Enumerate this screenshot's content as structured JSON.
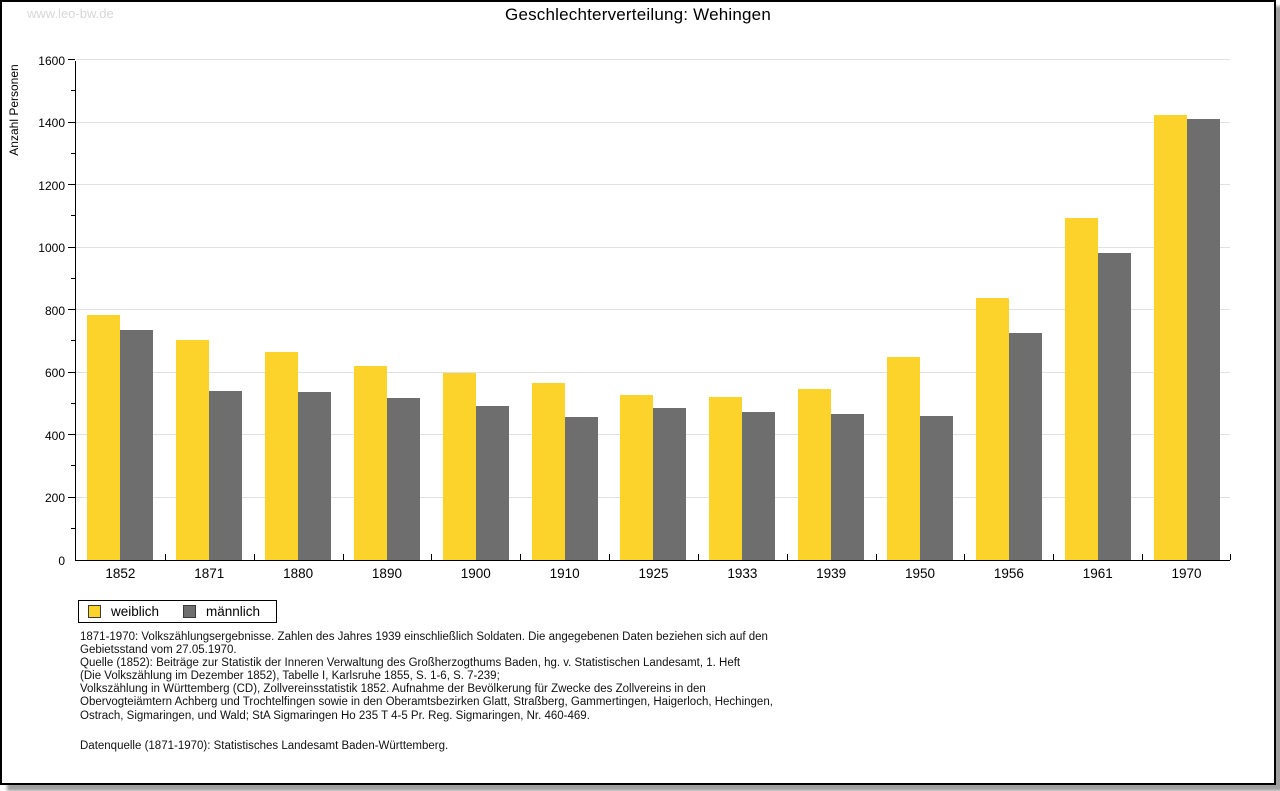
{
  "watermark": "www.leo-bw.de",
  "title": "Geschlechterverteilung: Wehingen",
  "colors": {
    "weiblich": "#fcd32a",
    "maennlich": "#6e6e6e",
    "gridline": "#e0e0e0",
    "axis": "#000000",
    "watermark": "#d7d7d7",
    "frame_border": "#000000"
  },
  "chart_data": {
    "type": "bar",
    "title": "Geschlechterverteilung: Wehingen",
    "xlabel": "",
    "ylabel": "Anzahl Personen",
    "ylim": [
      0,
      1600
    ],
    "y_major_step": 200,
    "y_minor_step": 100,
    "grid": true,
    "legend_position": "bottom-left",
    "categories": [
      "1852",
      "1871",
      "1880",
      "1890",
      "1900",
      "1910",
      "1925",
      "1933",
      "1939",
      "1950",
      "1956",
      "1961",
      "1970"
    ],
    "series": [
      {
        "name": "weiblich",
        "color": "#fcd32a",
        "values": [
          785,
          703,
          665,
          622,
          598,
          565,
          529,
          521,
          546,
          651,
          840,
          1095,
          1424
        ]
      },
      {
        "name": "männlich",
        "color": "#6e6e6e",
        "values": [
          735,
          540,
          537,
          517,
          492,
          457,
          486,
          474,
          467,
          460,
          725,
          983,
          1410
        ]
      }
    ]
  },
  "footnotes": [
    "1871-1970: Volkszählungsergebnisse. Zahlen des Jahres 1939 einschließlich Soldaten. Die angegebenen Daten beziehen sich auf den",
    "Gebietsstand vom 27.05.1970.",
    "Quelle (1852): Beiträge zur Statistik der Inneren Verwaltung des Großherzogthums Baden, hg. v. Statistischen Landesamt, 1. Heft",
    "(Die Volkszählung im Dezember 1852), Tabelle I, Karlsruhe 1855, S. 1-6, S. 7-239;",
    "Volkszählung in Württemberg (CD), Zollvereinsstatistik 1852. Aufnahme der Bevölkerung für Zwecke des Zollvereins in den",
    "Obervogteiämtern Achberg und Trochtelfingen sowie in den Oberamtsbezirken Glatt, Straßberg, Gammertingen, Haigerloch, Hechingen,",
    "Ostrach, Sigmaringen, und Wald; StA Sigmaringen Ho 235 T 4-5 Pr. Reg. Sigmaringen, Nr. 460-469."
  ],
  "datasource": "Datenquelle (1871-1970): Statistisches Landesamt Baden-Württemberg."
}
